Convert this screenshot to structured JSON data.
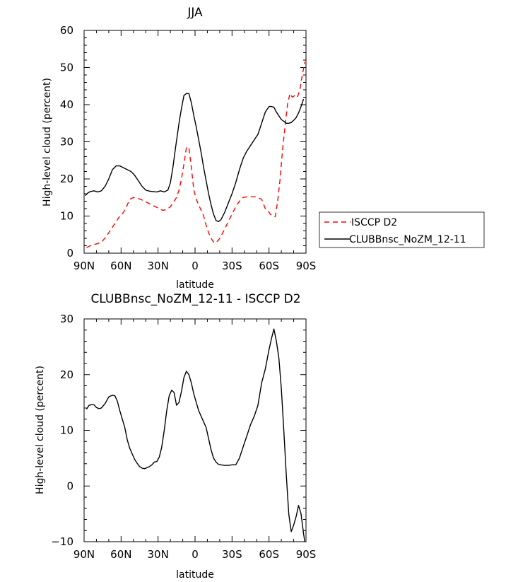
{
  "chart_data": [
    {
      "type": "line",
      "title": "JJA",
      "xlabel": "latitude",
      "ylabel": "High-level cloud (percent)",
      "xlim": [
        90,
        -90
      ],
      "ylim": [
        0,
        60
      ],
      "x_tick_values": [
        90,
        60,
        30,
        0,
        -30,
        -60,
        -90
      ],
      "x_tick_labels": [
        "90N",
        "60N",
        "30N",
        "0",
        "30S",
        "60S",
        "90S"
      ],
      "y_ticks": [
        0,
        10,
        20,
        30,
        40,
        50,
        60
      ],
      "grid": false,
      "legend_position": "right",
      "series": [
        {
          "name": "ISCCP D2",
          "color": "#ff0000",
          "dash": "dashed",
          "x": [
            88,
            85,
            80,
            77,
            75,
            72,
            70,
            67,
            64,
            61,
            58,
            55,
            53,
            50,
            47,
            44,
            41,
            38,
            35,
            32,
            29,
            26,
            23,
            20,
            17,
            15,
            13,
            11,
            9,
            7,
            5,
            3,
            1,
            -1,
            -3,
            -5,
            -7,
            -9,
            -11,
            -13,
            -15,
            -17,
            -19,
            -21,
            -24,
            -27,
            -30,
            -33,
            -36,
            -39,
            -42,
            -45,
            -48,
            -51,
            -54,
            -57,
            -59,
            -61,
            -63,
            -65,
            -67,
            -69,
            -71,
            -73,
            -75,
            -77,
            -79,
            -81,
            -83,
            -85,
            -87,
            -89
          ],
          "y": [
            1.5,
            2.0,
            2.5,
            2.8,
            3.3,
            4.5,
            5.5,
            7.0,
            8.5,
            10.0,
            11.0,
            13.0,
            14.5,
            15.0,
            14.8,
            14.5,
            14.0,
            13.5,
            13.0,
            12.5,
            12.0,
            11.5,
            11.8,
            12.5,
            14.0,
            15.0,
            17.0,
            20.0,
            24.0,
            28.5,
            28.5,
            23.0,
            17.0,
            14.5,
            13.0,
            11.5,
            10.0,
            7.5,
            5.5,
            4.0,
            3.0,
            2.8,
            3.5,
            4.5,
            6.5,
            8.5,
            10.5,
            12.5,
            14.0,
            15.0,
            15.2,
            15.2,
            15.2,
            15.0,
            14.5,
            12.0,
            11.5,
            10.5,
            10.0,
            9.8,
            14.0,
            20.0,
            28.0,
            34.0,
            40.0,
            43.0,
            42.0,
            42.5,
            42.0,
            44.0,
            48.0,
            51.5
          ]
        },
        {
          "name": "CLUBBnsc_NoZM_12-11",
          "color": "#000000",
          "dash": "solid",
          "x": [
            89,
            87,
            85,
            82,
            79,
            76,
            73,
            70,
            67,
            64,
            61,
            58,
            55,
            52,
            49,
            46,
            43,
            40,
            37,
            34,
            31,
            28,
            25,
            22,
            20,
            18,
            16,
            13,
            11,
            9,
            7,
            5,
            3,
            1,
            -1,
            -3,
            -5,
            -7,
            -9,
            -11,
            -13,
            -15,
            -17,
            -19,
            -21,
            -24,
            -27,
            -30,
            -33,
            -36,
            -39,
            -42,
            -45,
            -48,
            -51,
            -54,
            -57,
            -60,
            -62,
            -64,
            -66,
            -68,
            -70,
            -72,
            -74,
            -76,
            -78,
            -80,
            -82,
            -84,
            -86,
            -88
          ],
          "y": [
            15.5,
            16.2,
            16.6,
            16.8,
            16.5,
            16.8,
            18.0,
            20.0,
            22.5,
            23.5,
            23.5,
            23.0,
            22.5,
            22.0,
            21.0,
            19.5,
            18.0,
            17.0,
            16.7,
            16.6,
            16.5,
            16.8,
            16.5,
            17.0,
            19.0,
            23.0,
            28.0,
            35.0,
            39.0,
            42.5,
            43.0,
            43.0,
            40.5,
            37.0,
            34.0,
            30.5,
            27.0,
            23.0,
            19.5,
            16.0,
            13.0,
            10.5,
            8.8,
            8.5,
            9.0,
            11.0,
            13.5,
            16.0,
            19.0,
            22.5,
            25.5,
            27.5,
            29.0,
            30.5,
            32.0,
            35.0,
            38.0,
            39.5,
            39.5,
            39.3,
            38.0,
            37.0,
            36.0,
            35.5,
            35.0,
            35.0,
            35.2,
            35.8,
            36.5,
            37.8,
            39.5,
            41.5
          ]
        }
      ]
    },
    {
      "type": "line",
      "title": "CLUBBnsc_NoZM_12-11 - ISCCP D2",
      "xlabel": "latitude",
      "ylabel": "High-level cloud (percent)",
      "xlim": [
        90,
        -90
      ],
      "ylim": [
        -10,
        30
      ],
      "x_tick_values": [
        90,
        60,
        30,
        0,
        -30,
        -60,
        -90
      ],
      "x_tick_labels": [
        "90N",
        "60N",
        "30N",
        "0",
        "30S",
        "60S",
        "90S"
      ],
      "y_ticks": [
        -10,
        0,
        10,
        20,
        30
      ],
      "grid": false,
      "series": [
        {
          "color": "#000000",
          "dash": "solid",
          "x": [
            88,
            86,
            84,
            82,
            80,
            78,
            76,
            73,
            70,
            67,
            65,
            63,
            61,
            59,
            57,
            55,
            53,
            51,
            49,
            47,
            45,
            43,
            41,
            39,
            37,
            35,
            33,
            31,
            29,
            27,
            25,
            23,
            21,
            19,
            17,
            15,
            13,
            11,
            9,
            7,
            5,
            3,
            1,
            -1,
            -3,
            -5,
            -7,
            -9,
            -11,
            -13,
            -15,
            -17,
            -19,
            -21,
            -24,
            -27,
            -30,
            -33,
            -36,
            -39,
            -42,
            -45,
            -48,
            -51,
            -54,
            -57,
            -60,
            -62,
            -64,
            -66,
            -68,
            -70,
            -72,
            -74,
            -76,
            -78,
            -80,
            -82,
            -84,
            -86,
            -88,
            -89
          ],
          "y": [
            13.8,
            14.5,
            14.6,
            14.6,
            14.1,
            13.9,
            14.0,
            14.8,
            16.0,
            16.3,
            16.2,
            15.2,
            13.5,
            12.0,
            10.5,
            8.3,
            6.8,
            5.8,
            4.8,
            4.1,
            3.5,
            3.2,
            3.1,
            3.3,
            3.5,
            3.8,
            4.3,
            4.4,
            5.2,
            7.0,
            10.0,
            13.5,
            16.2,
            17.2,
            16.8,
            14.5,
            15.0,
            17.0,
            19.5,
            20.6,
            20.0,
            18.5,
            16.5,
            15.0,
            13.5,
            12.5,
            11.5,
            10.5,
            8.5,
            6.5,
            5.0,
            4.3,
            3.9,
            3.8,
            3.7,
            3.7,
            3.8,
            3.8,
            5.0,
            7.0,
            9.0,
            11.0,
            12.5,
            14.5,
            18.5,
            21.0,
            24.5,
            26.5,
            28.2,
            26.0,
            23.0,
            17.5,
            10.0,
            2.0,
            -5.0,
            -8.2,
            -7.0,
            -5.5,
            -3.5,
            -5.0,
            -8.5,
            -10.0
          ]
        }
      ]
    }
  ]
}
